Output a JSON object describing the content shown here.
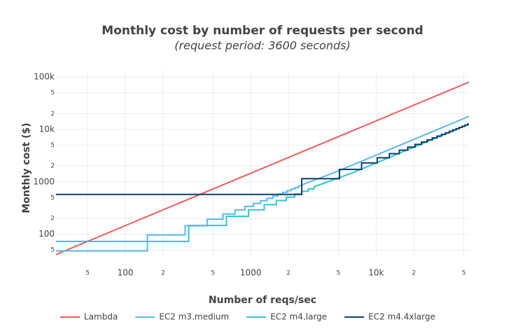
{
  "chart_data": {
    "type": "line",
    "title": "Monthly cost by number of requests per second",
    "subtitle": "(request period: 3600 seconds)",
    "x_label": "Number of reqs/sec",
    "y_label": "Monthly cost ($)",
    "x_log": true,
    "y_log": true,
    "grid": true,
    "legend": "bottom",
    "xlim": [
      28,
      55000
    ],
    "ylim": [
      37,
      136000
    ],
    "xticks": [
      {
        "value": 50,
        "label": "5"
      },
      100,
      {
        "value": 200,
        "label": "2"
      },
      {
        "value": 500,
        "label": "5"
      },
      1000,
      {
        "value": 2000,
        "label": "2"
      },
      {
        "value": 5000,
        "label": "5"
      },
      {
        "value": 10000,
        "label": "10k"
      },
      {
        "value": 20000,
        "label": "2"
      },
      {
        "value": 50000,
        "label": "5"
      }
    ],
    "yticks": [
      {
        "value": 50,
        "label": "5"
      },
      100,
      {
        "value": 200,
        "label": "2"
      },
      {
        "value": 500,
        "label": "5"
      },
      1000,
      {
        "value": 2000,
        "label": "2"
      },
      {
        "value": 5000,
        "label": "5"
      },
      {
        "value": 10000,
        "label": "10k"
      },
      {
        "value": 20000,
        "label": "2"
      },
      {
        "value": 50000,
        "label": "5"
      },
      {
        "value": 100000,
        "label": "100k"
      }
    ],
    "series": [
      {
        "name": "Lambda",
        "color": "#ef5b5b",
        "x": [
          28,
          55000
        ],
        "values": [
          41,
          80000
        ]
      },
      {
        "name": "EC2 m3.medium",
        "color": "#5ab8ef",
        "x": [
          28,
          150,
          150,
          300,
          300,
          450,
          450,
          600,
          600,
          750,
          750,
          900,
          900,
          1050,
          1050,
          1200,
          1200,
          1350,
          1350,
          1500,
          1500,
          1650,
          1650,
          1800,
          1800,
          1950,
          1950,
          2100,
          2100,
          2250,
          2250,
          2400,
          2400,
          4800,
          9600,
          19200,
          55000
        ],
        "values": [
          48,
          48,
          97,
          97,
          146,
          146,
          194,
          194,
          243,
          243,
          291,
          291,
          340,
          340,
          388,
          388,
          437,
          437,
          485,
          485,
          534,
          534,
          582,
          582,
          631,
          631,
          679,
          679,
          728,
          728,
          776,
          776,
          825,
          1552,
          3104,
          6208,
          17780
        ]
      },
      {
        "name": "EC2 m4.large",
        "color": "#2ec8cc",
        "x": [
          28,
          320,
          320,
          640,
          640,
          960,
          960,
          1280,
          1280,
          1600,
          1600,
          1920,
          1920,
          2240,
          2240,
          2560,
          2560,
          2880,
          2880,
          3200,
          3200,
          6400,
          12800,
          25600,
          55000
        ],
        "values": [
          73,
          73,
          147,
          147,
          220,
          220,
          293,
          293,
          367,
          367,
          440,
          440,
          513,
          513,
          587,
          587,
          660,
          660,
          733,
          733,
          807,
          1467,
          2933,
          5867,
          12600
        ]
      },
      {
        "name": "EC2 m4.4xlarge",
        "color": "#0d3f6e",
        "x": [
          28,
          2550,
          2550,
          5100,
          5100,
          7650,
          7650,
          10200,
          10200,
          12750,
          12750,
          15300,
          15300,
          17850,
          17850,
          20400,
          20400,
          22950,
          22950,
          25500,
          25500,
          28050,
          28050,
          30600,
          30600,
          33150,
          33150,
          35700,
          35700,
          38250,
          38250,
          40800,
          40800,
          43350,
          43350,
          45900,
          45900,
          48450,
          48450,
          51000,
          51000,
          53550,
          53550,
          55000
        ],
        "values": [
          575,
          575,
          1150,
          1150,
          1725,
          1725,
          2300,
          2300,
          2875,
          2875,
          3450,
          3450,
          4025,
          4025,
          4600,
          4600,
          5175,
          5175,
          5750,
          5750,
          6325,
          6325,
          6900,
          6900,
          7475,
          7475,
          8050,
          8050,
          8625,
          8625,
          9200,
          9200,
          9775,
          9775,
          10350,
          10350,
          10925,
          10925,
          11500,
          11500,
          12075,
          12075,
          12650,
          12650
        ]
      }
    ]
  }
}
